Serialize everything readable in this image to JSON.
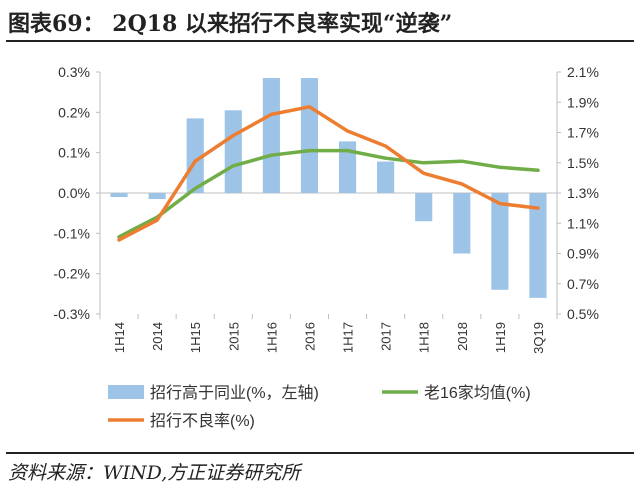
{
  "header": {
    "title": "图表69：  2Q18 以来招行不良率实现“逆袭”"
  },
  "footer": {
    "source": "资料来源：WIND,方正证券研究所"
  },
  "chart_data": {
    "type": "bar",
    "categories": [
      "1H14",
      "2014",
      "1H15",
      "2015",
      "1H16",
      "2016",
      "1H17",
      "2017",
      "1H18",
      "2018",
      "1H19",
      "3Q19"
    ],
    "series": [
      {
        "name": "招行高于同业(%,左轴)",
        "type": "bar",
        "axis": "left",
        "color": "#9dc3e6",
        "values": [
          -0.01,
          -0.015,
          0.185,
          0.205,
          0.285,
          0.285,
          0.128,
          0.078,
          -0.07,
          -0.15,
          -0.24,
          -0.26
        ]
      },
      {
        "name": "老16家均值(%)",
        "type": "line",
        "axis": "right",
        "color": "#70ad47",
        "values": [
          1.01,
          1.14,
          1.33,
          1.48,
          1.55,
          1.58,
          1.58,
          1.53,
          1.5,
          1.51,
          1.47,
          1.45
        ]
      },
      {
        "name": "招行不良率(%)",
        "type": "line",
        "axis": "right",
        "color": "#ed7d31",
        "values": [
          0.99,
          1.12,
          1.51,
          1.68,
          1.82,
          1.87,
          1.71,
          1.61,
          1.43,
          1.36,
          1.23,
          1.2
        ]
      }
    ],
    "left_axis": {
      "ticks": [
        "-0.3%",
        "-0.2%",
        "-0.1%",
        "0.0%",
        "0.1%",
        "0.2%",
        "0.3%"
      ],
      "range": [
        -0.3,
        0.3
      ]
    },
    "right_axis": {
      "ticks": [
        "0.5%",
        "0.7%",
        "0.9%",
        "1.1%",
        "1.3%",
        "1.5%",
        "1.7%",
        "1.9%",
        "2.1%"
      ],
      "range": [
        0.5,
        2.1
      ]
    },
    "legend": [
      {
        "label": "招行高于同业(%，左轴)",
        "kind": "bar",
        "color": "#9dc3e6"
      },
      {
        "label": "老16家均值(%)",
        "kind": "line",
        "color": "#70ad47"
      },
      {
        "label": "招行不良率(%)",
        "kind": "line",
        "color": "#ed7d31"
      }
    ],
    "legend_position": "bottom",
    "grid": false
  }
}
